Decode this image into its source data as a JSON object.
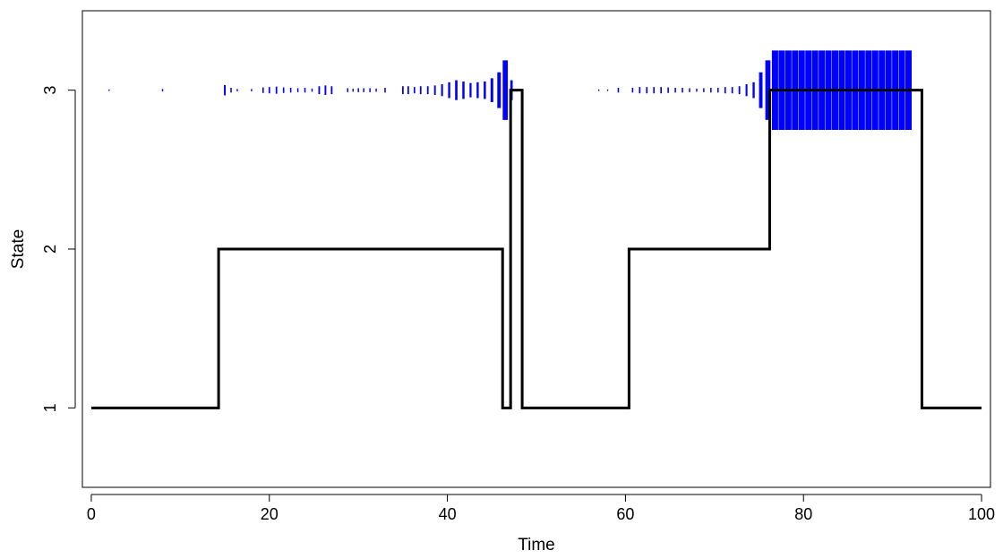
{
  "chart_data": {
    "type": "line",
    "title": "",
    "xlabel": "Time",
    "ylabel": "State",
    "xlim": [
      -1,
      101
    ],
    "ylim": [
      0.5,
      3.5
    ],
    "x_ticks": [
      "0",
      "20",
      "40",
      "60",
      "80",
      "100"
    ],
    "x_tick_values": [
      0,
      20,
      40,
      60,
      80,
      100
    ],
    "y_ticks": [
      "1",
      "2",
      "3"
    ],
    "y_tick_values": [
      1,
      2,
      3
    ],
    "grid": false,
    "legend": "none",
    "state_path": {
      "color": "#000000",
      "x": [
        0,
        14.3,
        14.3,
        46.2,
        46.2,
        47.1,
        47.1,
        48.4,
        48.4,
        60.4,
        60.4,
        76.2,
        76.2,
        93.3,
        93.3,
        100
      ],
      "y": [
        1,
        1,
        2,
        2,
        1,
        1,
        3,
        3,
        1,
        1,
        2,
        2,
        3,
        3,
        1,
        1
      ]
    },
    "probability_bars": [
      {
        "state": 3,
        "color": "#0000ff",
        "x": [
          2,
          8,
          15,
          15.7,
          16.4,
          18,
          19.3,
          20,
          20.8,
          21.6,
          22.4,
          23.2,
          24,
          24.8,
          25.6,
          26.3,
          27,
          28.8,
          29.4,
          30,
          30.6,
          31.3,
          32,
          33,
          35,
          35.6,
          36.3,
          37,
          37.8,
          38.6,
          39.4,
          40.2,
          41,
          41.8,
          42.6,
          43.4,
          44.2,
          45,
          45.8,
          46.5,
          47.2,
          57,
          58,
          59.2,
          60.8,
          61.6,
          62.4,
          63.2,
          64,
          64.8,
          65.6,
          66.4,
          67.2,
          68,
          68.8,
          69.6,
          70.4,
          71.2,
          72,
          72.8,
          73.6,
          74.4,
          75.2,
          76
        ],
        "p": [
          0.02,
          0.03,
          0.13,
          0.06,
          0.03,
          0.03,
          0.07,
          0.08,
          0.09,
          0.07,
          0.06,
          0.05,
          0.06,
          0.04,
          0.1,
          0.12,
          0.1,
          0.05,
          0.04,
          0.05,
          0.05,
          0.05,
          0.04,
          0.06,
          0.1,
          0.1,
          0.08,
          0.1,
          0.1,
          0.12,
          0.15,
          0.2,
          0.25,
          0.22,
          0.18,
          0.2,
          0.22,
          0.3,
          0.45,
          0.75,
          0.25,
          0.02,
          0.02,
          0.06,
          0.06,
          0.08,
          0.08,
          0.08,
          0.08,
          0.07,
          0.06,
          0.06,
          0.05,
          0.04,
          0.05,
          0.06,
          0.06,
          0.08,
          0.08,
          0.1,
          0.15,
          0.2,
          0.45,
          0.75
        ]
      }
    ],
    "probability_blocks": [
      {
        "state": 3,
        "color": "#0000ff",
        "x_start": 76.8,
        "x_end": 92.5,
        "step": 0.75,
        "p": 1.0
      }
    ]
  }
}
